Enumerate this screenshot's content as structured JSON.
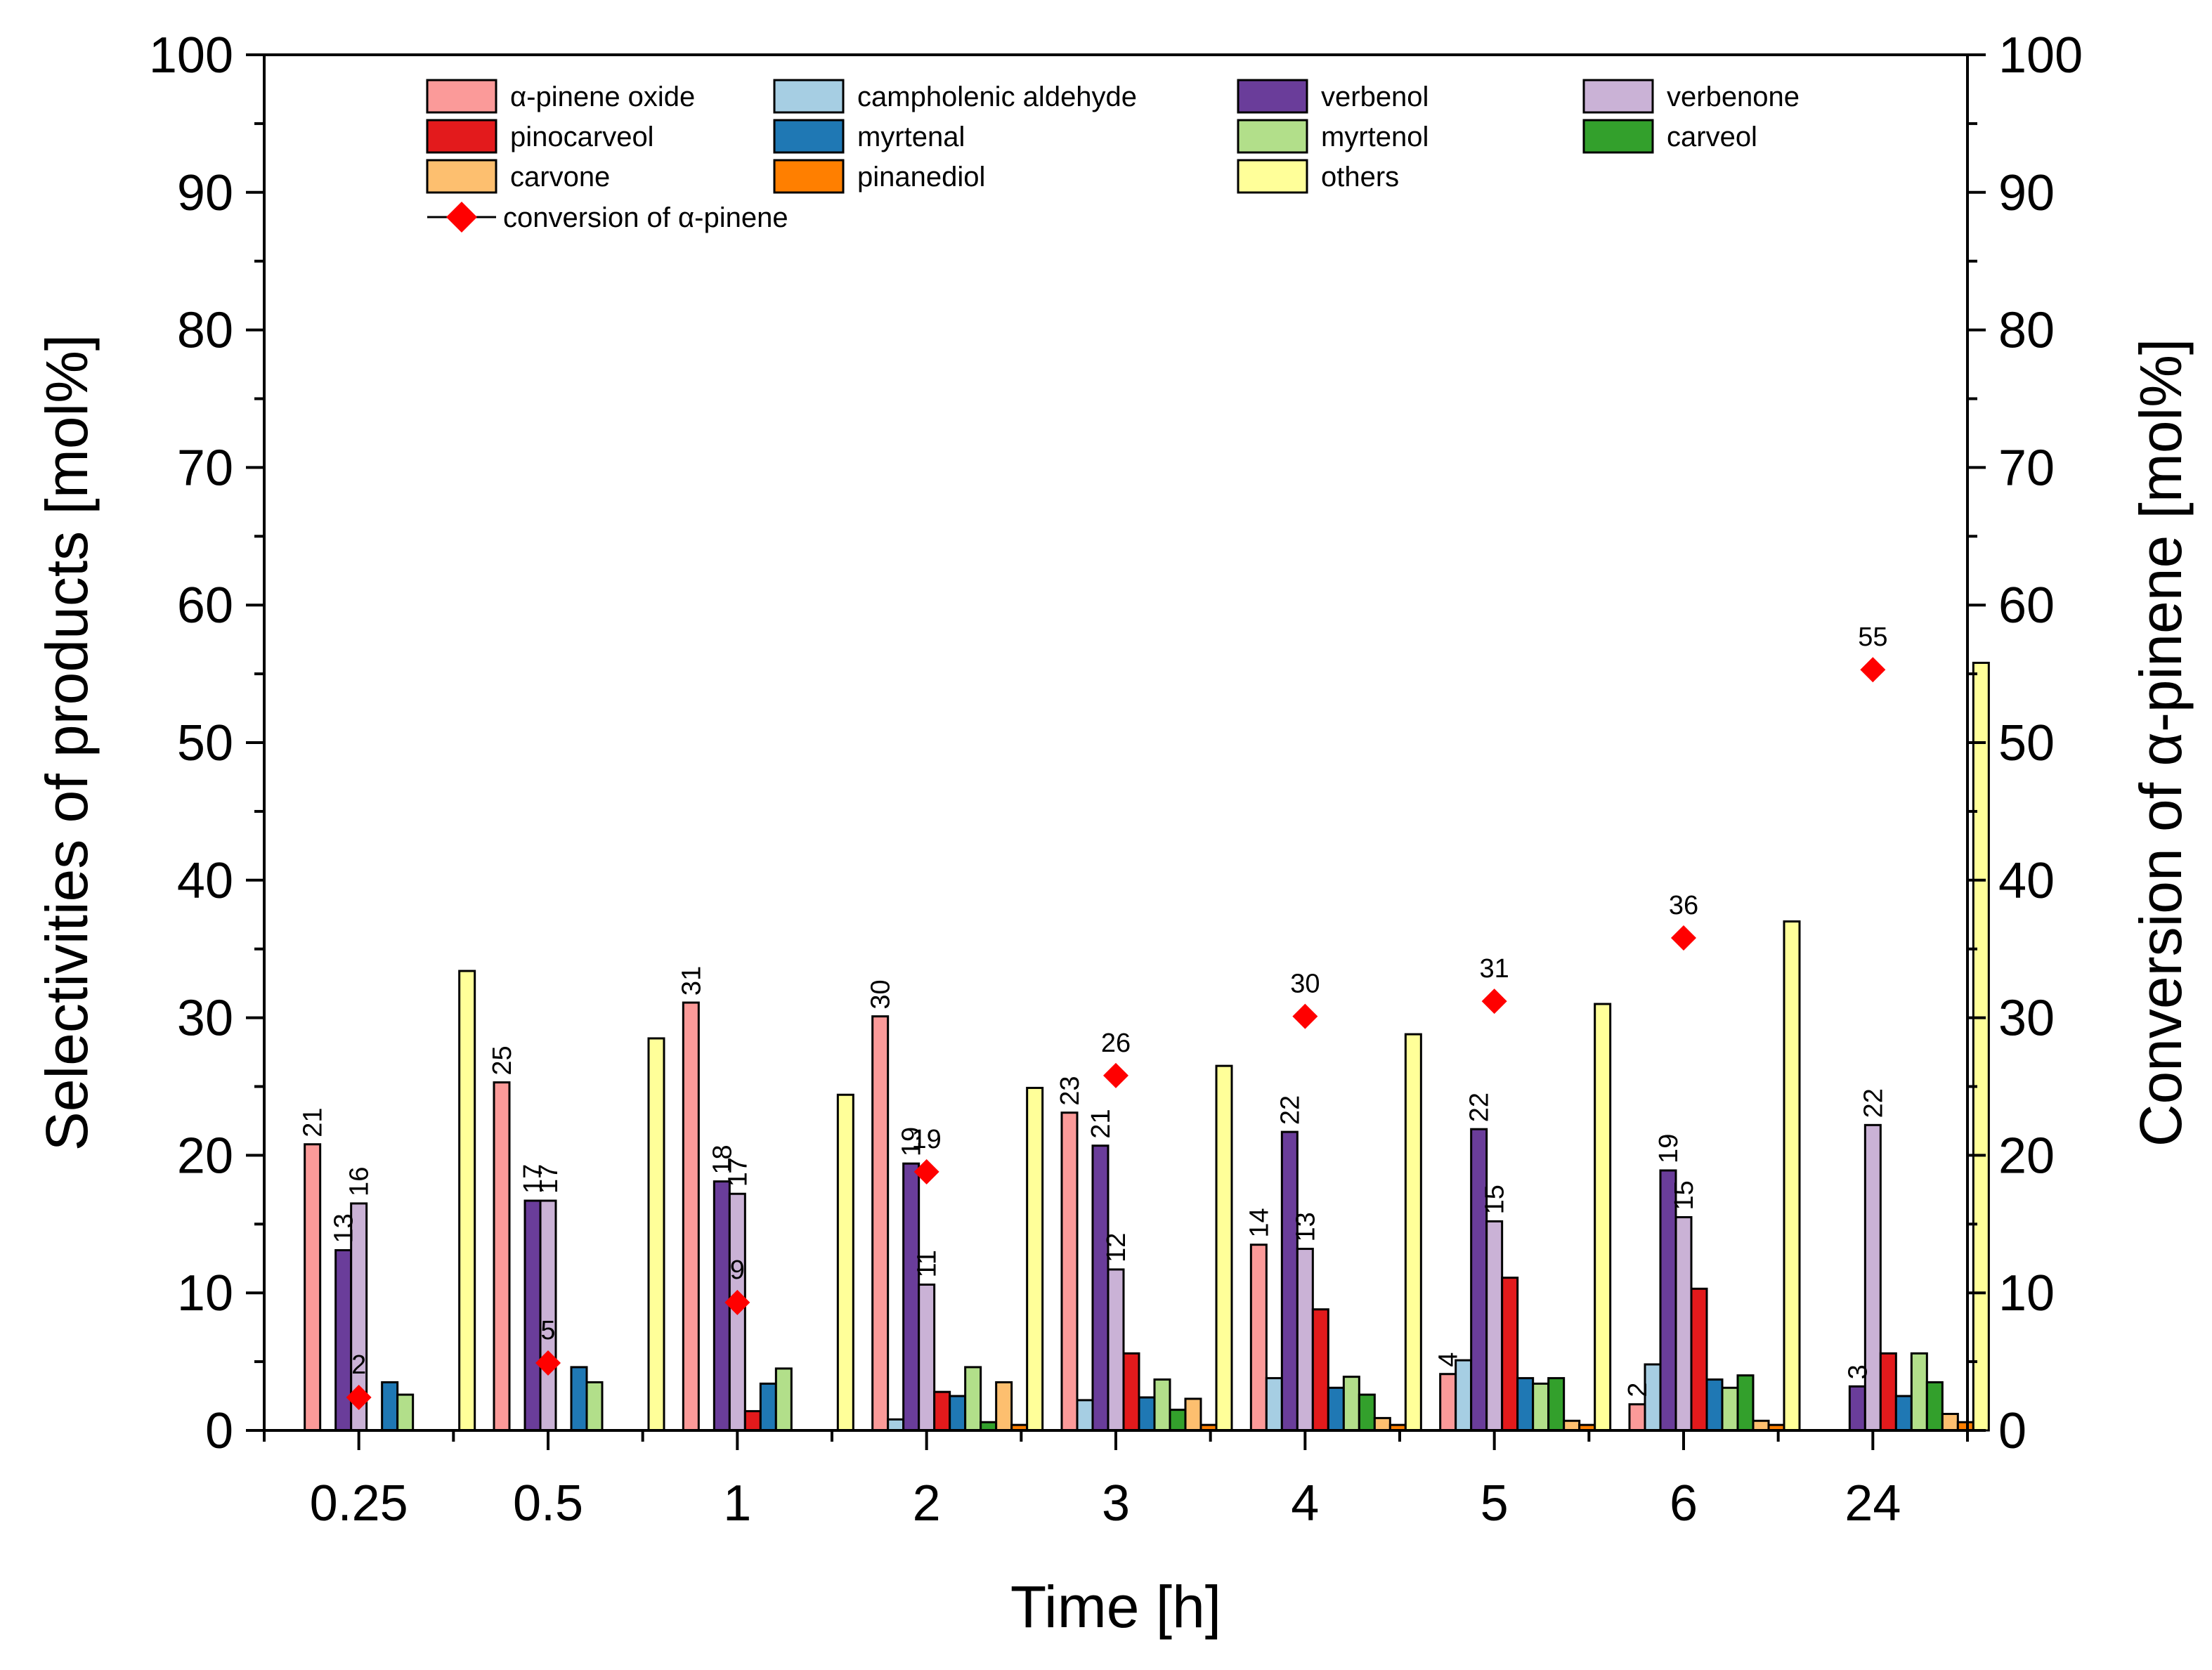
{
  "chart_data": {
    "type": "bar",
    "xlabel": "Time [h]",
    "ylabel": "Selectivities of products [mol%]",
    "y2label": "Conversion of α-pinene [mol%]",
    "ylim": [
      0,
      100
    ],
    "y2lim": [
      0,
      100
    ],
    "yticks": [
      0,
      10,
      20,
      30,
      40,
      50,
      60,
      70,
      80,
      90,
      100
    ],
    "categories": [
      "0.25",
      "0.5",
      "1",
      "2",
      "3",
      "4",
      "5",
      "6",
      "24"
    ],
    "legend_position": "top",
    "series": [
      {
        "name": "α-pinene oxide",
        "color": "#FB9A99",
        "values": [
          20.8,
          25.3,
          31.1,
          30.1,
          23.1,
          13.5,
          4.1,
          1.9,
          0
        ]
      },
      {
        "name": "campholenic aldehyde",
        "color": "#A6CEE3",
        "values": [
          0,
          0,
          0,
          0.8,
          2.2,
          3.8,
          5.1,
          4.8,
          0
        ]
      },
      {
        "name": "verbenol",
        "color": "#6A3D9A",
        "values": [
          13.1,
          16.7,
          18.1,
          19.4,
          20.7,
          21.7,
          21.9,
          18.9,
          3.2
        ]
      },
      {
        "name": "verbenone",
        "color": "#CAB2D6",
        "values": [
          16.5,
          16.7,
          17.2,
          10.6,
          11.7,
          13.2,
          15.2,
          15.5,
          22.2
        ]
      },
      {
        "name": "pinocarveol",
        "color": "#E31A1C",
        "values": [
          0,
          0,
          1.4,
          2.8,
          5.6,
          8.8,
          11.1,
          10.3,
          5.6
        ]
      },
      {
        "name": "myrtenal",
        "color": "#1F78B4",
        "values": [
          3.5,
          4.6,
          3.4,
          2.5,
          2.4,
          3.1,
          3.8,
          3.7,
          2.5
        ]
      },
      {
        "name": "myrtenol",
        "color": "#B2DF8A",
        "values": [
          2.6,
          3.5,
          4.5,
          4.6,
          3.7,
          3.9,
          3.4,
          3.1,
          5.6
        ]
      },
      {
        "name": "carveol",
        "color": "#33A02C",
        "values": [
          0,
          0,
          0,
          0.6,
          1.5,
          2.6,
          3.8,
          4.0,
          3.5
        ]
      },
      {
        "name": "carvone",
        "color": "#FDBF6F",
        "values": [
          0,
          0,
          0,
          3.5,
          2.3,
          0.9,
          0.7,
          0.7,
          1.2
        ]
      },
      {
        "name": "pinanediol",
        "color": "#FF7F00",
        "values": [
          0,
          0,
          0,
          0.4,
          0.4,
          0.4,
          0.4,
          0.4,
          0.6
        ]
      },
      {
        "name": "others",
        "color": "#FFFF99",
        "values": [
          33.4,
          28.5,
          24.4,
          24.9,
          26.5,
          28.8,
          31.0,
          37.0,
          55.8
        ]
      }
    ],
    "bar_labels": [
      {
        "cat": 0,
        "series": 0,
        "text": "21"
      },
      {
        "cat": 0,
        "series": 2,
        "text": "13"
      },
      {
        "cat": 0,
        "series": 3,
        "text": "16"
      },
      {
        "cat": 1,
        "series": 0,
        "text": "25"
      },
      {
        "cat": 1,
        "series": 2,
        "text": "17"
      },
      {
        "cat": 1,
        "series": 3,
        "text": "17"
      },
      {
        "cat": 2,
        "series": 0,
        "text": "31"
      },
      {
        "cat": 2,
        "series": 2,
        "text": "18"
      },
      {
        "cat": 2,
        "series": 3,
        "text": "17"
      },
      {
        "cat": 3,
        "series": 0,
        "text": "30"
      },
      {
        "cat": 3,
        "series": 2,
        "text": "19"
      },
      {
        "cat": 3,
        "series": 3,
        "text": "11"
      },
      {
        "cat": 4,
        "series": 0,
        "text": "23"
      },
      {
        "cat": 4,
        "series": 2,
        "text": "21"
      },
      {
        "cat": 4,
        "series": 3,
        "text": "12"
      },
      {
        "cat": 5,
        "series": 0,
        "text": "14"
      },
      {
        "cat": 5,
        "series": 2,
        "text": "22"
      },
      {
        "cat": 5,
        "series": 3,
        "text": "13"
      },
      {
        "cat": 6,
        "series": 0,
        "text": "4"
      },
      {
        "cat": 6,
        "series": 2,
        "text": "22"
      },
      {
        "cat": 6,
        "series": 3,
        "text": "15"
      },
      {
        "cat": 7,
        "series": 0,
        "text": "2"
      },
      {
        "cat": 7,
        "series": 2,
        "text": "19"
      },
      {
        "cat": 7,
        "series": 3,
        "text": "15"
      },
      {
        "cat": 8,
        "series": 2,
        "text": "3"
      },
      {
        "cat": 8,
        "series": 3,
        "text": "22"
      }
    ],
    "conversion": {
      "name": "conversion of α-pinene",
      "color": "#FF0000",
      "values": [
        2.4,
        4.9,
        9.3,
        18.8,
        25.8,
        30.1,
        31.2,
        35.8,
        55.3
      ],
      "labels": [
        "2",
        "5",
        "9",
        "19",
        "26",
        "30",
        "31",
        "36",
        "55"
      ]
    }
  }
}
